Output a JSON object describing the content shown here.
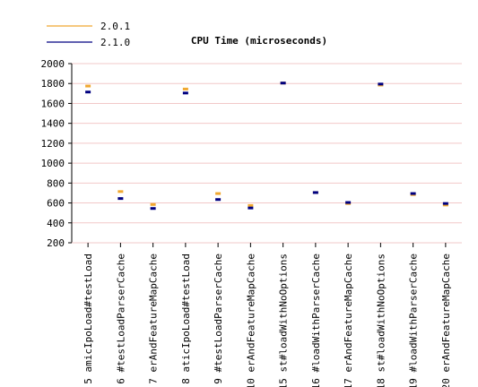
{
  "chart_data": {
    "type": "scatter",
    "title": "CPU Time (microseconds)",
    "xlabel": "",
    "ylabel": "",
    "ylim": [
      200,
      2000
    ],
    "yticks": [
      200,
      400,
      600,
      800,
      1000,
      1200,
      1400,
      1600,
      1800,
      2000
    ],
    "grid": true,
    "legend_position": "top-left",
    "categories": [
      "5 amicIpoLoad#testLoad",
      "6 #testLoadParserCache",
      "7 erAndFeatureMapCache",
      "8 aticIpoLoad#testLoad",
      "9 #testLoadParserCache",
      "10 erAndFeatureMapCache",
      "15 st#loadWithNoOptions",
      "16 #loadWithParserCache",
      "17 erAndFeatureMapCache",
      "18 st#loadWithNoOptions",
      "19 #loadWithParserCache",
      "20 erAndFeatureMapCache"
    ],
    "series": [
      {
        "name": "2.0.1",
        "color": "#f0a830",
        "values": [
          1770,
          710,
          580,
          1740,
          690,
          570,
          1800,
          700,
          590,
          1780,
          680,
          575
        ]
      },
      {
        "name": "2.1.0",
        "color": "#000080",
        "values": [
          1710,
          640,
          540,
          1700,
          630,
          545,
          1800,
          700,
          600,
          1790,
          690,
          590
        ]
      }
    ]
  }
}
